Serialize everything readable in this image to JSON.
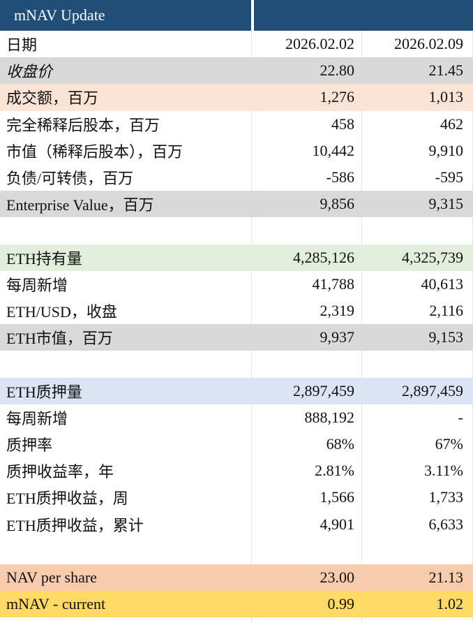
{
  "title": "mNAV Update",
  "dates": [
    "2026.02.02",
    "2026.02.09"
  ],
  "rows": [
    {
      "label": "日期",
      "v1": "2026.02.02",
      "v2": "2026.02.09",
      "style": "plain"
    },
    {
      "label": "收盘价",
      "v1": "22.80",
      "v2": "21.45",
      "style": "gray",
      "italic": true
    },
    {
      "label": "成交额，百万",
      "v1": "1,276",
      "v2": "1,013",
      "style": "peach"
    },
    {
      "label": "完全稀释后股本，百万",
      "v1": "458",
      "v2": "462",
      "style": "plain"
    },
    {
      "label": "市值（稀释后股本），百万",
      "v1": "10,442",
      "v2": "9,910",
      "style": "plain"
    },
    {
      "label": "负债/可转债，百万",
      "v1": "-586",
      "v2": "-595",
      "style": "plain"
    },
    {
      "label": "Enterprise Value，百万",
      "v1": "9,856",
      "v2": "9,315",
      "style": "gray"
    },
    {
      "label": "",
      "v1": "",
      "v2": "",
      "style": "plain"
    },
    {
      "label": "ETH持有量",
      "v1": "4,285,126",
      "v2": "4,325,739",
      "style": "green"
    },
    {
      "label": "每周新增",
      "v1": "41,788",
      "v2": "40,613",
      "style": "plain"
    },
    {
      "label": "ETH/USD，收盘",
      "v1": "2,319",
      "v2": "2,116",
      "style": "plain"
    },
    {
      "label": "ETH市值，百万",
      "v1": "9,937",
      "v2": "9,153",
      "style": "gray"
    },
    {
      "label": "",
      "v1": "",
      "v2": "",
      "style": "plain"
    },
    {
      "label": "ETH质押量",
      "v1": "2,897,459",
      "v2": "2,897,459",
      "style": "blue"
    },
    {
      "label": "每周新增",
      "v1": "888,192",
      "v2": "-",
      "style": "plain"
    },
    {
      "label": "质押率",
      "v1": "68%",
      "v2": "67%",
      "style": "plain"
    },
    {
      "label": "质押收益率，年",
      "v1": "2.81%",
      "v2": "3.11%",
      "style": "plain"
    },
    {
      "label": "ETH质押收益，周",
      "v1": "1,566",
      "v2": "1,733",
      "style": "plain"
    },
    {
      "label": "ETH质押收益，累计",
      "v1": "4,901",
      "v2": "6,633",
      "style": "plain"
    },
    {
      "label": "",
      "v1": "",
      "v2": "",
      "style": "plain"
    },
    {
      "label": "NAV per share",
      "v1": "23.00",
      "v2": "21.13",
      "style": "salmon"
    },
    {
      "label": "mNAV - current",
      "v1": "0.99",
      "v2": "1.02",
      "style": "gold"
    }
  ]
}
